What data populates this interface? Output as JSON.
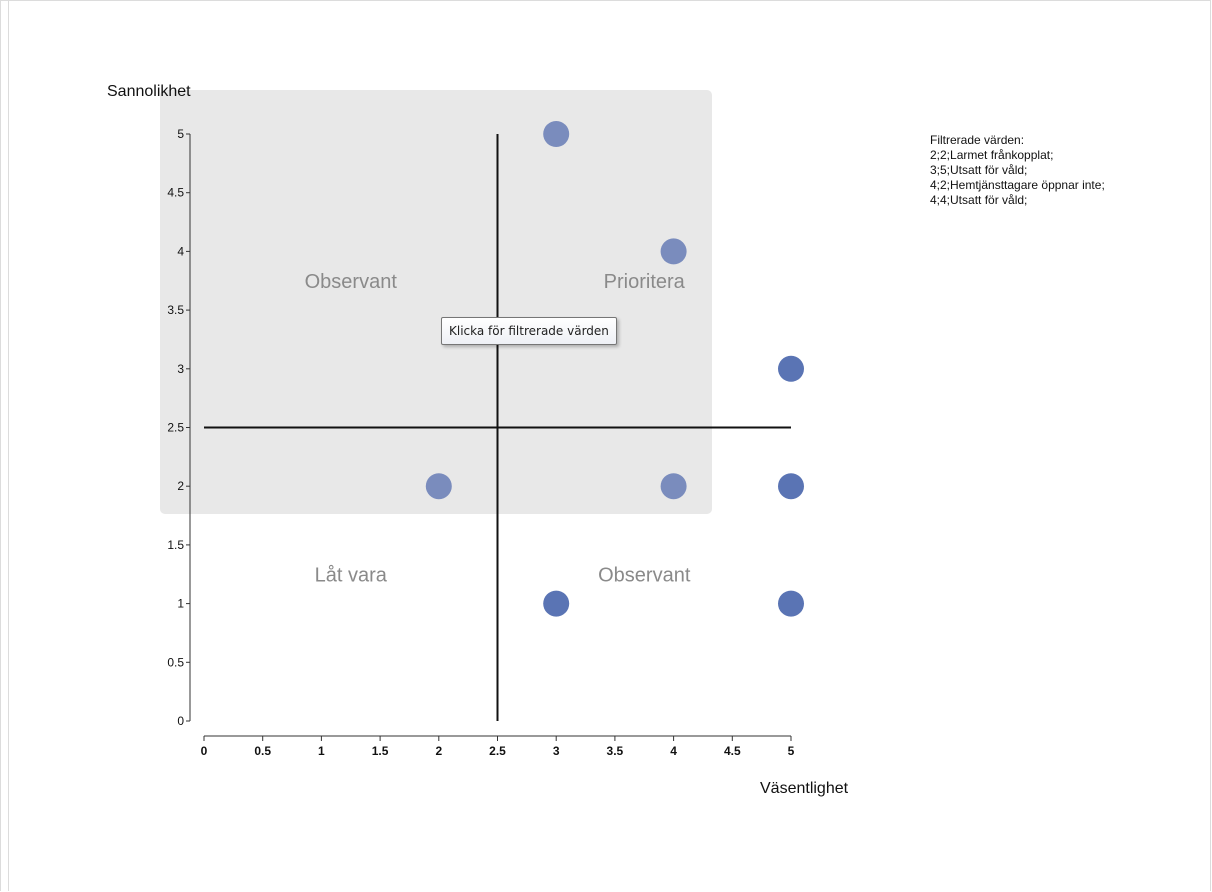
{
  "chart_data": {
    "type": "scatter",
    "ylabel": "Sannolikhet",
    "xlabel": "Väsentlighet",
    "xlim": [
      0,
      5
    ],
    "ylim": [
      0,
      5
    ],
    "xticks": [
      "0",
      "0.5",
      "1",
      "1.5",
      "2",
      "2.5",
      "3",
      "3.5",
      "4",
      "4.5",
      "5"
    ],
    "yticks": [
      "0",
      "0.5",
      "1",
      "1.5",
      "2",
      "2.5",
      "3",
      "3.5",
      "4",
      "4.5",
      "5"
    ],
    "divider_x": 2.5,
    "divider_y": 2.5,
    "quadrant_labels": [
      {
        "text": "Observant",
        "x": 1.25,
        "y": 3.75
      },
      {
        "text": "Prioritera",
        "x": 3.75,
        "y": 3.75
      },
      {
        "text": "Låt vara",
        "x": 1.25,
        "y": 1.25
      },
      {
        "text": "Observant",
        "x": 3.75,
        "y": 1.25
      }
    ],
    "points": [
      {
        "x": 3,
        "y": 5,
        "filtered": true
      },
      {
        "x": 4,
        "y": 4,
        "filtered": true
      },
      {
        "x": 5,
        "y": 3,
        "filtered": false
      },
      {
        "x": 2,
        "y": 2,
        "filtered": true
      },
      {
        "x": 4,
        "y": 2,
        "filtered": true
      },
      {
        "x": 5,
        "y": 2,
        "filtered": false
      },
      {
        "x": 3,
        "y": 1,
        "filtered": false
      },
      {
        "x": 5,
        "y": 1,
        "filtered": false
      }
    ],
    "colors": {
      "point": "#5a74b4",
      "point_filtered": "#7a8cbd",
      "selection": "#e8e8e8",
      "axis": "#333333",
      "divider": "#111111",
      "quadrant_label": "#8a8a8a"
    }
  },
  "filter_panel": {
    "title": "Filtrerade värden:",
    "lines": [
      "2;2;Larmet frånkopplat;",
      "3;5;Utsatt för våld;",
      "4;2;Hemtjänsttagare öppnar inte;",
      "4;4;Utsatt för våld;"
    ]
  },
  "tooltip": {
    "text": "Klicka för filtrerade värden"
  }
}
